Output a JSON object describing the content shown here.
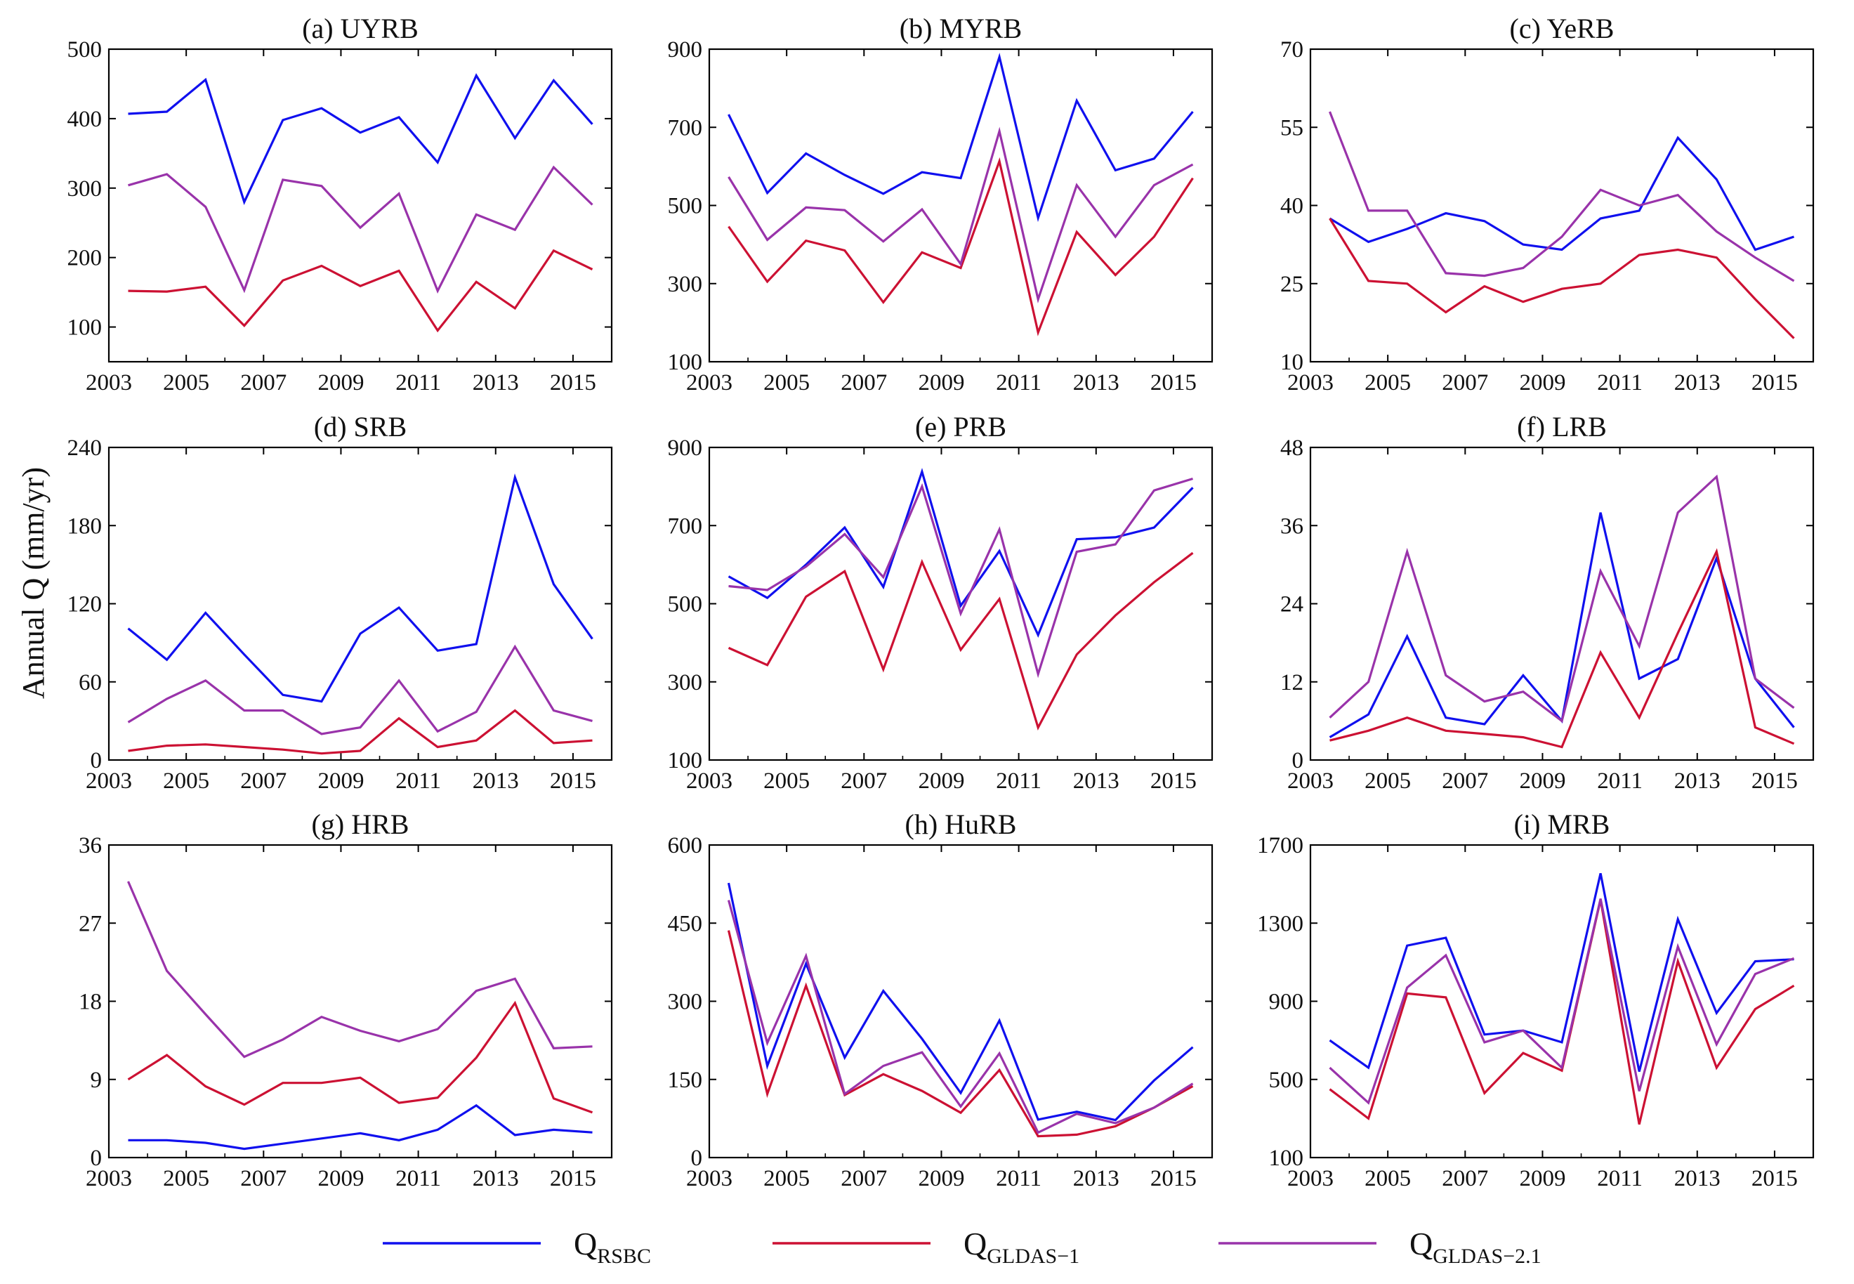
{
  "figure": {
    "ylabel": "Annual Q (mm/yr)"
  },
  "legend": [
    {
      "key": "rsbc",
      "main": "Q",
      "sub": "RSBC",
      "color": "#1010ee"
    },
    {
      "key": "gldas1",
      "main": "Q",
      "sub": "GLDAS−1",
      "color": "#cc1133"
    },
    {
      "key": "gldas21",
      "main": "Q",
      "sub": "GLDAS−2.1",
      "color": "#9933aa"
    }
  ],
  "chart_data": [
    {
      "type": "line",
      "title": "(a) UYRB",
      "x": [
        2003.5,
        2004.5,
        2005.5,
        2006.5,
        2007.5,
        2008.5,
        2009.5,
        2010.5,
        2011.5,
        2012.5,
        2013.5,
        2014.5,
        2015.5
      ],
      "xlim": [
        2003,
        2016
      ],
      "xticks": [
        "2003",
        "2005",
        "2007",
        "2009",
        "2011",
        "2013",
        "2015"
      ],
      "ylim": [
        50,
        500
      ],
      "yticks": [
        "100",
        "200",
        "300",
        "400",
        "500"
      ],
      "series": [
        {
          "name": "RSBC",
          "values": [
            407,
            410,
            456,
            280,
            398,
            415,
            380,
            402,
            337,
            462,
            372,
            455,
            392
          ]
        },
        {
          "name": "GLDAS-1",
          "values": [
            152,
            151,
            158,
            102,
            167,
            188,
            159,
            181,
            95,
            165,
            127,
            210,
            183
          ]
        },
        {
          "name": "GLDAS-2.1",
          "values": [
            304,
            320,
            273,
            153,
            312,
            303,
            243,
            292,
            152,
            262,
            240,
            330,
            276
          ]
        }
      ]
    },
    {
      "type": "line",
      "title": "(b) MYRB",
      "x": [
        2003.5,
        2004.5,
        2005.5,
        2006.5,
        2007.5,
        2008.5,
        2009.5,
        2010.5,
        2011.5,
        2012.5,
        2013.5,
        2014.5,
        2015.5
      ],
      "xlim": [
        2003,
        2016
      ],
      "xticks": [
        "2003",
        "2005",
        "2007",
        "2009",
        "2011",
        "2013",
        "2015"
      ],
      "ylim": [
        100,
        900
      ],
      "yticks": [
        "100",
        "300",
        "500",
        "700",
        "900"
      ],
      "series": [
        {
          "name": "RSBC",
          "values": [
            733,
            532,
            633,
            578,
            530,
            585,
            570,
            880,
            468,
            768,
            590,
            620,
            740
          ]
        },
        {
          "name": "GLDAS-1",
          "values": [
            446,
            305,
            410,
            385,
            252,
            380,
            340,
            613,
            175,
            432,
            322,
            420,
            570
          ]
        },
        {
          "name": "GLDAS-2.1",
          "values": [
            573,
            412,
            495,
            488,
            408,
            490,
            350,
            690,
            260,
            552,
            420,
            552,
            605
          ]
        }
      ]
    },
    {
      "type": "line",
      "title": "(c) YeRB",
      "x": [
        2003.5,
        2004.5,
        2005.5,
        2006.5,
        2007.5,
        2008.5,
        2009.5,
        2010.5,
        2011.5,
        2012.5,
        2013.5,
        2014.5,
        2015.5
      ],
      "xlim": [
        2003,
        2016
      ],
      "xticks": [
        "2003",
        "2005",
        "2007",
        "2009",
        "2011",
        "2013",
        "2015"
      ],
      "ylim": [
        10,
        70
      ],
      "yticks": [
        "10",
        "25",
        "40",
        "55",
        "70"
      ],
      "series": [
        {
          "name": "RSBC",
          "values": [
            37.5,
            33,
            35.5,
            38.5,
            37,
            32.5,
            31.5,
            37.5,
            39,
            53,
            45,
            31.5,
            34
          ]
        },
        {
          "name": "GLDAS-1",
          "values": [
            37.5,
            25.5,
            25,
            19.5,
            24.5,
            21.5,
            24,
            25,
            30.5,
            31.5,
            30,
            22,
            14.5
          ]
        },
        {
          "name": "GLDAS-2.1",
          "values": [
            58,
            39,
            39,
            27,
            26.5,
            28,
            34,
            43,
            40,
            42,
            35,
            30,
            25.5
          ]
        }
      ]
    },
    {
      "type": "line",
      "title": "(d) SRB",
      "x": [
        2003.5,
        2004.5,
        2005.5,
        2006.5,
        2007.5,
        2008.5,
        2009.5,
        2010.5,
        2011.5,
        2012.5,
        2013.5,
        2014.5,
        2015.5
      ],
      "xlim": [
        2003,
        2016
      ],
      "xticks": [
        "2003",
        "2005",
        "2007",
        "2009",
        "2011",
        "2013",
        "2015"
      ],
      "ylim": [
        0,
        240
      ],
      "yticks": [
        "0",
        "60",
        "120",
        "180",
        "240"
      ],
      "series": [
        {
          "name": "RSBC",
          "values": [
            101,
            77,
            113,
            81,
            50,
            45,
            97,
            117,
            84,
            89,
            217,
            135,
            93
          ]
        },
        {
          "name": "GLDAS-1",
          "values": [
            7,
            11,
            12,
            10,
            8,
            5,
            7,
            32,
            10,
            15,
            38,
            13,
            15
          ]
        },
        {
          "name": "GLDAS-2.1",
          "values": [
            29,
            47,
            61,
            38,
            38,
            20,
            25,
            61,
            22,
            37,
            87,
            38,
            30
          ]
        }
      ]
    },
    {
      "type": "line",
      "title": "(e) PRB",
      "x": [
        2003.5,
        2004.5,
        2005.5,
        2006.5,
        2007.5,
        2008.5,
        2009.5,
        2010.5,
        2011.5,
        2012.5,
        2013.5,
        2014.5,
        2015.5
      ],
      "xlim": [
        2003,
        2016
      ],
      "xticks": [
        "2003",
        "2005",
        "2007",
        "2009",
        "2011",
        "2013",
        "2015"
      ],
      "ylim": [
        100,
        900
      ],
      "yticks": [
        "100",
        "300",
        "500",
        "700",
        "900"
      ],
      "series": [
        {
          "name": "RSBC",
          "values": [
            570,
            515,
            600,
            695,
            543,
            838,
            495,
            635,
            420,
            665,
            670,
            695,
            797
          ]
        },
        {
          "name": "GLDAS-1",
          "values": [
            387,
            343,
            518,
            583,
            332,
            607,
            382,
            512,
            183,
            370,
            470,
            555,
            630
          ]
        },
        {
          "name": "GLDAS-2.1",
          "values": [
            545,
            535,
            595,
            678,
            568,
            800,
            475,
            690,
            320,
            633,
            652,
            790,
            820
          ]
        }
      ]
    },
    {
      "type": "line",
      "title": "(f) LRB",
      "x": [
        2003.5,
        2004.5,
        2005.5,
        2006.5,
        2007.5,
        2008.5,
        2009.5,
        2010.5,
        2011.5,
        2012.5,
        2013.5,
        2014.5,
        2015.5
      ],
      "xlim": [
        2003,
        2016
      ],
      "xticks": [
        "2003",
        "2005",
        "2007",
        "2009",
        "2011",
        "2013",
        "2015"
      ],
      "ylim": [
        0,
        48
      ],
      "yticks": [
        "0",
        "12",
        "24",
        "36",
        "48"
      ],
      "series": [
        {
          "name": "RSBC",
          "values": [
            3.5,
            7,
            19,
            6.5,
            5.5,
            13,
            6,
            38,
            12.5,
            15.5,
            31,
            12.5,
            5
          ]
        },
        {
          "name": "GLDAS-1",
          "values": [
            3,
            4.5,
            6.5,
            4.5,
            4,
            3.5,
            2,
            16.5,
            6.5,
            19.5,
            32,
            5,
            2.5
          ]
        },
        {
          "name": "GLDAS-2.1",
          "values": [
            6.5,
            12,
            32,
            13,
            9,
            10.5,
            6,
            29,
            17.5,
            38,
            43.5,
            12.5,
            8
          ]
        }
      ]
    },
    {
      "type": "line",
      "title": "(g) HRB",
      "x": [
        2003.5,
        2004.5,
        2005.5,
        2006.5,
        2007.5,
        2008.5,
        2009.5,
        2010.5,
        2011.5,
        2012.5,
        2013.5,
        2014.5,
        2015.5
      ],
      "xlim": [
        2003,
        2016
      ],
      "xticks": [
        "2003",
        "2005",
        "2007",
        "2009",
        "2011",
        "2013",
        "2015"
      ],
      "ylim": [
        0,
        36
      ],
      "yticks": [
        "0",
        "9",
        "18",
        "27",
        "36"
      ],
      "series": [
        {
          "name": "RSBC",
          "values": [
            2,
            2,
            1.7,
            1,
            1.6,
            2.2,
            2.8,
            2,
            3.2,
            6,
            2.6,
            3.2,
            2.9
          ]
        },
        {
          "name": "GLDAS-1",
          "values": [
            9,
            11.8,
            8.2,
            6.1,
            8.6,
            8.6,
            9.2,
            6.3,
            6.9,
            11.5,
            17.8,
            6.8,
            5.2
          ]
        },
        {
          "name": "GLDAS-2.1",
          "values": [
            31.8,
            21.5,
            16.5,
            11.6,
            13.6,
            16.2,
            14.6,
            13.4,
            14.8,
            19.2,
            20.6,
            12.6,
            12.8
          ]
        }
      ]
    },
    {
      "type": "line",
      "title": "(h) HuRB",
      "x": [
        2003.5,
        2004.5,
        2005.5,
        2006.5,
        2007.5,
        2008.5,
        2009.5,
        2010.5,
        2011.5,
        2012.5,
        2013.5,
        2014.5,
        2015.5
      ],
      "xlim": [
        2003,
        2016
      ],
      "xticks": [
        "2003",
        "2005",
        "2007",
        "2009",
        "2011",
        "2013",
        "2015"
      ],
      "ylim": [
        0,
        600
      ],
      "yticks": [
        "0",
        "150",
        "300",
        "450",
        "600"
      ],
      "series": [
        {
          "name": "RSBC",
          "values": [
            527,
            176,
            372,
            192,
            320,
            228,
            124,
            263,
            73,
            88,
            72,
            148,
            212
          ]
        },
        {
          "name": "GLDAS-1",
          "values": [
            436,
            122,
            330,
            120,
            160,
            128,
            86,
            168,
            41,
            44,
            60,
            96,
            137
          ]
        },
        {
          "name": "GLDAS-2.1",
          "values": [
            494,
            220,
            387,
            122,
            176,
            202,
            98,
            200,
            48,
            84,
            66,
            96,
            142
          ]
        }
      ]
    },
    {
      "type": "line",
      "title": "(i) MRB",
      "x": [
        2003.5,
        2004.5,
        2005.5,
        2006.5,
        2007.5,
        2008.5,
        2009.5,
        2010.5,
        2011.5,
        2012.5,
        2013.5,
        2014.5,
        2015.5
      ],
      "xlim": [
        2003,
        2016
      ],
      "xticks": [
        "2003",
        "2005",
        "2007",
        "2009",
        "2011",
        "2013",
        "2015"
      ],
      "ylim": [
        100,
        1700
      ],
      "yticks": [
        "100",
        "500",
        "900",
        "1300",
        "1700"
      ],
      "series": [
        {
          "name": "RSBC",
          "values": [
            700,
            560,
            1185,
            1225,
            730,
            750,
            690,
            1555,
            540,
            1320,
            840,
            1105,
            1115
          ]
        },
        {
          "name": "GLDAS-1",
          "values": [
            450,
            300,
            940,
            920,
            430,
            635,
            545,
            1420,
            270,
            1105,
            560,
            860,
            980
          ]
        },
        {
          "name": "GLDAS-2.1",
          "values": [
            560,
            380,
            970,
            1135,
            690,
            750,
            560,
            1425,
            440,
            1180,
            680,
            1040,
            1120
          ]
        }
      ]
    }
  ]
}
